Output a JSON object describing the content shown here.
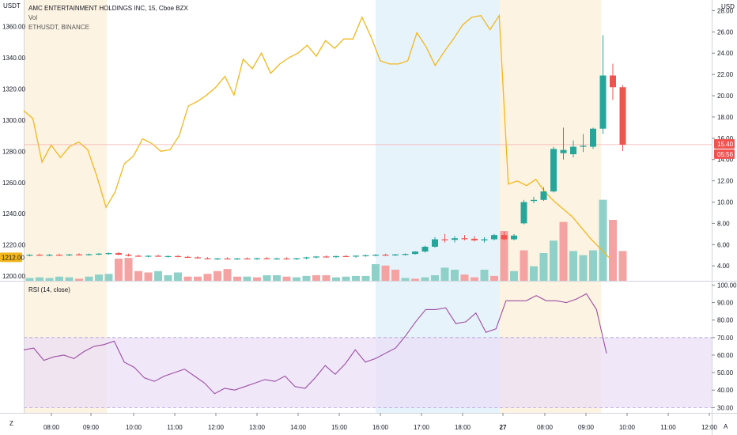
{
  "header": {
    "symbol_badge": "USDT",
    "currency": "USD",
    "title": "AMC ENTERTAINMENT HOLDINGS INC, 15, Cboe BZX",
    "vol_label": "Vol",
    "overlay_label": "ETHUSDT, BINANCE"
  },
  "rsi_label": "RSI (14, close)",
  "footer": {
    "left_icon": "Z",
    "right_icon": "A"
  },
  "colors": {
    "up": "#26a69a",
    "down": "#ef5350",
    "vol_up": "#8fd1c9",
    "vol_down": "#f4a3a2",
    "overlay_line": "#f2b71c",
    "rsi_line": "#9c4ea3",
    "rsi_band": "#e9ddf7",
    "session_pre": "#fdf3e2",
    "session_post": "#e7f3fb",
    "price_line": "#f7b0b0"
  },
  "chart_data": [
    {
      "type": "candlestick",
      "name": "AMC ENTERTAINMENT HOLDINGS INC",
      "x_ticks": [
        "08:00",
        "09:00",
        "10:00",
        "11:00",
        "12:00",
        "13:00",
        "14:00",
        "15:00",
        "16:00",
        "17:00",
        "18:00",
        "27",
        "08:00",
        "09:00",
        "10:00",
        "11:00",
        "12:00"
      ],
      "right_axis": {
        "ticks": [
          "4.00",
          "6.00",
          "8.00",
          "10.00",
          "12.00",
          "14.00",
          "16.00",
          "18.00",
          "20.00",
          "22.00",
          "24.00",
          "26.00",
          "28.00"
        ],
        "range": [
          2.6,
          29.0
        ]
      },
      "left_axis": {
        "ticks": [
          "1200.00",
          "1220.00",
          "1240.00",
          "1260.00",
          "1280.00",
          "1300.00",
          "1320.00",
          "1340.00",
          "1360.00"
        ],
        "range": [
          1197,
          1377
        ]
      },
      "last_price": "15.40",
      "countdown": "05:56",
      "overlay_last": "1212.00",
      "candles": [
        {
          "t": 0,
          "o": 5.0,
          "h": 5.1,
          "l": 4.9,
          "c": 5.05
        },
        {
          "t": 1,
          "o": 5.05,
          "h": 5.15,
          "l": 4.95,
          "c": 5.0
        },
        {
          "t": 2,
          "o": 5.0,
          "h": 5.12,
          "l": 4.92,
          "c": 5.05
        },
        {
          "t": 3,
          "o": 5.05,
          "h": 5.15,
          "l": 4.95,
          "c": 5.02
        },
        {
          "t": 4,
          "o": 5.02,
          "h": 5.12,
          "l": 4.92,
          "c": 5.08
        },
        {
          "t": 5,
          "o": 5.08,
          "h": 5.18,
          "l": 5.0,
          "c": 5.05
        },
        {
          "t": 6,
          "o": 5.05,
          "h": 5.15,
          "l": 4.96,
          "c": 5.1
        },
        {
          "t": 7,
          "o": 5.1,
          "h": 5.2,
          "l": 5.0,
          "c": 5.15
        },
        {
          "t": 8,
          "o": 5.15,
          "h": 5.25,
          "l": 5.05,
          "c": 5.2
        },
        {
          "t": 9,
          "o": 5.2,
          "h": 5.3,
          "l": 5.02,
          "c": 5.05
        },
        {
          "t": 10,
          "o": 5.05,
          "h": 5.15,
          "l": 4.9,
          "c": 4.95
        },
        {
          "t": 11,
          "o": 4.95,
          "h": 5.05,
          "l": 4.85,
          "c": 4.9
        },
        {
          "t": 12,
          "o": 4.9,
          "h": 5.0,
          "l": 4.8,
          "c": 4.95
        },
        {
          "t": 13,
          "o": 4.95,
          "h": 5.05,
          "l": 4.85,
          "c": 4.88
        },
        {
          "t": 14,
          "o": 4.88,
          "h": 4.98,
          "l": 4.78,
          "c": 4.92
        },
        {
          "t": 15,
          "o": 4.92,
          "h": 5.02,
          "l": 4.8,
          "c": 4.85
        },
        {
          "t": 16,
          "o": 4.85,
          "h": 4.95,
          "l": 4.75,
          "c": 4.8
        },
        {
          "t": 17,
          "o": 4.8,
          "h": 4.9,
          "l": 4.68,
          "c": 4.72
        },
        {
          "t": 18,
          "o": 4.72,
          "h": 4.82,
          "l": 4.62,
          "c": 4.66
        },
        {
          "t": 19,
          "o": 4.66,
          "h": 4.76,
          "l": 4.56,
          "c": 4.7
        },
        {
          "t": 20,
          "o": 4.7,
          "h": 4.8,
          "l": 4.6,
          "c": 4.65
        },
        {
          "t": 21,
          "o": 4.65,
          "h": 4.75,
          "l": 4.55,
          "c": 4.7
        },
        {
          "t": 22,
          "o": 4.7,
          "h": 4.8,
          "l": 4.6,
          "c": 4.67
        },
        {
          "t": 23,
          "o": 4.67,
          "h": 4.77,
          "l": 4.57,
          "c": 4.72
        },
        {
          "t": 24,
          "o": 4.72,
          "h": 4.82,
          "l": 4.62,
          "c": 4.68
        },
        {
          "t": 25,
          "o": 4.68,
          "h": 4.78,
          "l": 4.58,
          "c": 4.7
        },
        {
          "t": 26,
          "o": 4.7,
          "h": 4.8,
          "l": 4.6,
          "c": 4.65
        },
        {
          "t": 27,
          "o": 4.65,
          "h": 4.75,
          "l": 4.55,
          "c": 4.72
        },
        {
          "t": 28,
          "o": 4.72,
          "h": 4.85,
          "l": 4.62,
          "c": 4.8
        },
        {
          "t": 29,
          "o": 4.8,
          "h": 4.92,
          "l": 4.7,
          "c": 4.88
        },
        {
          "t": 30,
          "o": 4.88,
          "h": 4.98,
          "l": 4.78,
          "c": 4.82
        },
        {
          "t": 31,
          "o": 4.82,
          "h": 4.95,
          "l": 4.74,
          "c": 4.92
        },
        {
          "t": 32,
          "o": 4.92,
          "h": 5.02,
          "l": 4.82,
          "c": 4.87
        },
        {
          "t": 33,
          "o": 4.87,
          "h": 5.0,
          "l": 4.77,
          "c": 4.96
        },
        {
          "t": 34,
          "o": 4.96,
          "h": 5.06,
          "l": 4.86,
          "c": 5.0
        },
        {
          "t": 35,
          "o": 5.0,
          "h": 5.1,
          "l": 4.9,
          "c": 5.05
        },
        {
          "t": 36,
          "o": 5.05,
          "h": 5.15,
          "l": 4.95,
          "c": 5.02
        },
        {
          "t": 37,
          "o": 5.02,
          "h": 5.12,
          "l": 4.92,
          "c": 5.08
        },
        {
          "t": 38,
          "o": 5.08,
          "h": 5.18,
          "l": 4.98,
          "c": 5.12
        },
        {
          "t": 39,
          "o": 5.12,
          "h": 5.4,
          "l": 5.05,
          "c": 5.35
        },
        {
          "t": 40,
          "o": 5.35,
          "h": 5.9,
          "l": 5.25,
          "c": 5.8
        },
        {
          "t": 41,
          "o": 5.8,
          "h": 6.7,
          "l": 5.7,
          "c": 6.5
        },
        {
          "t": 42,
          "o": 6.5,
          "h": 7.0,
          "l": 6.2,
          "c": 6.45
        },
        {
          "t": 43,
          "o": 6.45,
          "h": 6.8,
          "l": 6.2,
          "c": 6.6
        },
        {
          "t": 44,
          "o": 6.6,
          "h": 6.9,
          "l": 6.4,
          "c": 6.55
        },
        {
          "t": 45,
          "o": 6.55,
          "h": 6.8,
          "l": 6.3,
          "c": 6.4
        },
        {
          "t": 46,
          "o": 6.4,
          "h": 6.7,
          "l": 6.2,
          "c": 6.5
        },
        {
          "t": 47,
          "o": 6.5,
          "h": 7.0,
          "l": 6.4,
          "c": 6.9
        },
        {
          "t": 48,
          "o": 6.9,
          "h": 7.2,
          "l": 6.4,
          "c": 6.5
        },
        {
          "t": 49,
          "o": 6.5,
          "h": 7.0,
          "l": 6.4,
          "c": 6.85
        },
        {
          "t": 50,
          "o": 8.0,
          "h": 10.2,
          "l": 7.9,
          "c": 10.0
        },
        {
          "t": 51,
          "o": 10.1,
          "h": 10.5,
          "l": 9.9,
          "c": 10.2
        },
        {
          "t": 52,
          "o": 10.2,
          "h": 11.4,
          "l": 10.1,
          "c": 11.0
        },
        {
          "t": 53,
          "o": 11.0,
          "h": 15.2,
          "l": 10.9,
          "c": 15.0
        },
        {
          "t": 54,
          "o": 14.6,
          "h": 17.0,
          "l": 14.0,
          "c": 14.9
        },
        {
          "t": 55,
          "o": 14.5,
          "h": 15.8,
          "l": 14.2,
          "c": 15.2
        },
        {
          "t": 56,
          "o": 15.2,
          "h": 16.4,
          "l": 14.7,
          "c": 15.3
        },
        {
          "t": 57,
          "o": 15.2,
          "h": 17.0,
          "l": 15.0,
          "c": 16.9
        },
        {
          "t": 58,
          "o": 16.9,
          "h": 25.7,
          "l": 16.4,
          "c": 21.9
        },
        {
          "t": 59,
          "o": 21.9,
          "h": 23.0,
          "l": 19.6,
          "c": 20.8
        },
        {
          "t": 60,
          "o": 20.8,
          "h": 21.0,
          "l": 14.8,
          "c": 15.4
        }
      ],
      "volume": [
        {
          "v": 0.4,
          "up": true
        },
        {
          "v": 0.5,
          "up": true
        },
        {
          "v": 0.4,
          "up": true
        },
        {
          "v": 0.6,
          "up": true
        },
        {
          "v": 0.5,
          "up": true
        },
        {
          "v": 0.3,
          "up": false
        },
        {
          "v": 0.6,
          "up": true
        },
        {
          "v": 0.9,
          "up": true
        },
        {
          "v": 1.0,
          "up": true
        },
        {
          "v": 3.2,
          "up": false
        },
        {
          "v": 3.3,
          "up": false
        },
        {
          "v": 1.4,
          "up": false
        },
        {
          "v": 1.2,
          "up": false
        },
        {
          "v": 1.4,
          "up": true
        },
        {
          "v": 0.8,
          "up": true
        },
        {
          "v": 1.2,
          "up": true
        },
        {
          "v": 0.6,
          "up": false
        },
        {
          "v": 0.6,
          "up": false
        },
        {
          "v": 1.0,
          "up": false
        },
        {
          "v": 1.4,
          "up": false
        },
        {
          "v": 1.7,
          "up": false
        },
        {
          "v": 0.6,
          "up": false
        },
        {
          "v": 0.6,
          "up": true
        },
        {
          "v": 0.5,
          "up": false
        },
        {
          "v": 0.8,
          "up": true
        },
        {
          "v": 0.8,
          "up": true
        },
        {
          "v": 0.6,
          "up": false
        },
        {
          "v": 0.5,
          "up": true
        },
        {
          "v": 0.7,
          "up": true
        },
        {
          "v": 0.8,
          "up": false
        },
        {
          "v": 0.8,
          "up": false
        },
        {
          "v": 0.5,
          "up": true
        },
        {
          "v": 0.6,
          "up": true
        },
        {
          "v": 0.7,
          "up": true
        },
        {
          "v": 0.7,
          "up": true
        },
        {
          "v": 2.4,
          "up": true
        },
        {
          "v": 2.2,
          "up": false
        },
        {
          "v": 1.6,
          "up": false
        },
        {
          "v": 0.4,
          "up": true
        },
        {
          "v": 0.3,
          "up": false
        },
        {
          "v": 0.5,
          "up": true
        },
        {
          "v": 0.8,
          "up": true
        },
        {
          "v": 1.9,
          "up": true
        },
        {
          "v": 1.6,
          "up": true
        },
        {
          "v": 0.9,
          "up": false
        },
        {
          "v": 0.5,
          "up": false
        },
        {
          "v": 1.6,
          "up": true
        },
        {
          "v": 0.7,
          "up": false
        },
        {
          "v": 7.2,
          "up": false
        },
        {
          "v": 1.4,
          "up": true
        },
        {
          "v": 4.4,
          "up": false
        },
        {
          "v": 2.1,
          "up": true
        },
        {
          "v": 4.0,
          "up": true
        },
        {
          "v": 5.8,
          "up": true
        },
        {
          "v": 8.5,
          "up": false
        },
        {
          "v": 4.3,
          "up": true
        },
        {
          "v": 3.7,
          "up": true
        },
        {
          "v": 4.4,
          "up": true
        },
        {
          "v": 11.7,
          "up": true
        },
        {
          "v": 8.8,
          "up": false
        },
        {
          "v": 4.3,
          "up": false
        }
      ],
      "overlay_series": {
        "name": "ETHUSDT, BINANCE",
        "values": [
          1306,
          1301,
          1273,
          1284,
          1276,
          1283,
          1286,
          1281,
          1264,
          1244,
          1254,
          1272,
          1277,
          1288,
          1285,
          1280,
          1281,
          1290,
          1309,
          1312,
          1316,
          1321,
          1328,
          1316,
          1339,
          1333,
          1343,
          1330,
          1336,
          1340,
          1343,
          1348,
          1341,
          1351,
          1346,
          1352,
          1352,
          1366,
          1353,
          1338,
          1336,
          1336,
          1338,
          1356,
          1347,
          1335,
          1344,
          1352,
          1361,
          1366,
          1367,
          1358,
          1367,
          1259,
          1261,
          1258,
          1262,
          1254,
          1248,
          1243,
          1238,
          1231,
          1224,
          1218,
          1212
        ]
      }
    },
    {
      "type": "line",
      "name": "RSI (14, close)",
      "y_ticks": [
        "30.00",
        "40.00",
        "50.00",
        "60.00",
        "70.00",
        "80.00",
        "90.00",
        "100.00"
      ],
      "ylim": [
        27,
        102
      ],
      "band": [
        30,
        70
      ],
      "values": [
        63,
        64,
        57,
        59,
        60,
        58,
        62,
        65,
        66,
        68,
        56,
        53,
        47,
        45,
        48,
        50,
        52,
        48,
        44,
        38,
        41,
        40,
        42,
        44,
        46,
        45,
        48,
        42,
        41,
        47,
        54,
        49,
        55,
        63,
        56,
        58,
        61,
        64,
        71,
        79,
        86,
        86,
        87,
        78,
        79,
        84,
        73,
        75,
        91,
        91,
        91,
        94,
        91,
        91,
        90,
        92,
        95,
        86,
        61
      ]
    }
  ]
}
